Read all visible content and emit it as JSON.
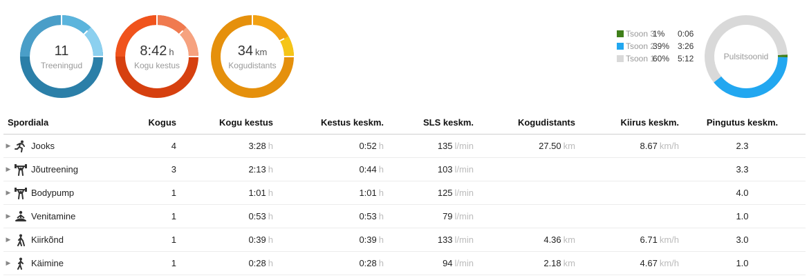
{
  "summary": {
    "trainings": {
      "value": "11",
      "label": "Treeningud",
      "color": "#2b7fa8",
      "color_light": "#5bb4dc"
    },
    "duration": {
      "value": "8:42",
      "unit": "h",
      "label": "Kogu kestus",
      "color": "#d6400f",
      "color_light": "#f07a4f"
    },
    "distance": {
      "value": "34",
      "unit": "km",
      "label": "Kogudistants",
      "color": "#e5900c",
      "color_light": "#f7b02a"
    }
  },
  "pulse": {
    "label": "Pulsitsoonid",
    "zones": [
      {
        "name": "Tsoon 3",
        "percent": "1%",
        "time": "0:06",
        "color": "#3f7f1a",
        "fraction": 0.01
      },
      {
        "name": "Tsoon 2",
        "percent": "39%",
        "time": "3:26",
        "color": "#22a7f0",
        "fraction": 0.39
      },
      {
        "name": "Tsoon 1",
        "percent": "60%",
        "time": "5:12",
        "color": "#d9d9d9",
        "fraction": 0.6
      }
    ]
  },
  "table": {
    "headers": [
      "Spordiala",
      "Kogus",
      "Kogu kestus",
      "Kestus keskm.",
      "SLS keskm.",
      "Kogudistants",
      "Kiirus keskm.",
      "Pingutus keskm."
    ],
    "rows": [
      {
        "icon": "running-icon",
        "name": "Jooks",
        "count": "4",
        "total": "3:28",
        "total_unit": "h",
        "avg": "0:52",
        "avg_unit": "h",
        "hr": "135",
        "hr_unit": "l/min",
        "dist": "27.50",
        "dist_unit": "km",
        "speed": "8.67",
        "speed_unit": "km/h",
        "effort": "2.3"
      },
      {
        "icon": "weightlifting-icon",
        "name": "Jõutreening",
        "count": "3",
        "total": "2:13",
        "total_unit": "h",
        "avg": "0:44",
        "avg_unit": "h",
        "hr": "103",
        "hr_unit": "l/min",
        "dist": "",
        "dist_unit": "",
        "speed": "",
        "speed_unit": "",
        "effort": "3.3"
      },
      {
        "icon": "weightlifting-icon",
        "name": "Bodypump",
        "count": "1",
        "total": "1:01",
        "total_unit": "h",
        "avg": "1:01",
        "avg_unit": "h",
        "hr": "125",
        "hr_unit": "l/min",
        "dist": "",
        "dist_unit": "",
        "speed": "",
        "speed_unit": "",
        "effort": "4.0"
      },
      {
        "icon": "yoga-icon",
        "name": "Venitamine",
        "count": "1",
        "total": "0:53",
        "total_unit": "h",
        "avg": "0:53",
        "avg_unit": "h",
        "hr": "79",
        "hr_unit": "l/min",
        "dist": "",
        "dist_unit": "",
        "speed": "",
        "speed_unit": "",
        "effort": "1.0"
      },
      {
        "icon": "nordic-walking-icon",
        "name": "Kiirkõnd",
        "count": "1",
        "total": "0:39",
        "total_unit": "h",
        "avg": "0:39",
        "avg_unit": "h",
        "hr": "133",
        "hr_unit": "l/min",
        "dist": "4.36",
        "dist_unit": "km",
        "speed": "6.71",
        "speed_unit": "km/h",
        "effort": "3.0"
      },
      {
        "icon": "walking-icon",
        "name": "Käimine",
        "count": "1",
        "total": "0:28",
        "total_unit": "h",
        "avg": "0:28",
        "avg_unit": "h",
        "hr": "94",
        "hr_unit": "l/min",
        "dist": "2.18",
        "dist_unit": "km",
        "speed": "4.67",
        "speed_unit": "km/h",
        "effort": "1.0"
      }
    ]
  }
}
